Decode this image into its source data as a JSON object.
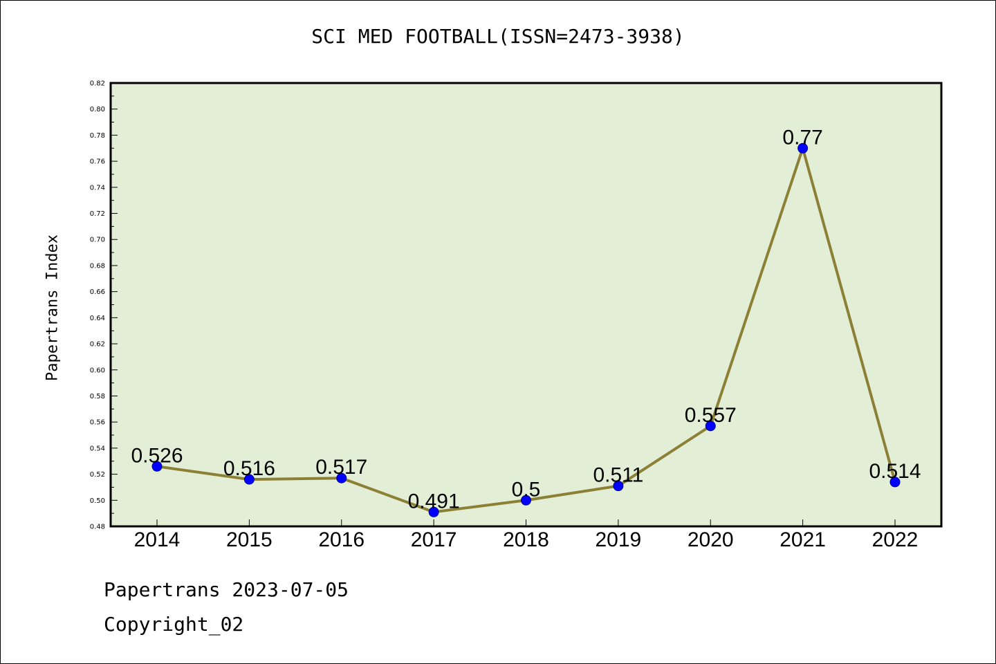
{
  "header": {
    "title": "SCI MED FOOTBALL(ISSN=2473-3938)"
  },
  "footer": {
    "line1": "Papertrans 2023-07-05",
    "line2": "Copyright_02"
  },
  "chart_data": {
    "type": "line",
    "title": "SCI MED FOOTBALL(ISSN=2473-3938)",
    "xlabel": "",
    "ylabel": "Papertrans Index",
    "categories": [
      "2014",
      "2015",
      "2016",
      "2017",
      "2018",
      "2019",
      "2020",
      "2021",
      "2022"
    ],
    "values": [
      0.526,
      0.516,
      0.517,
      0.491,
      0.5,
      0.511,
      0.557,
      0.77,
      0.514
    ],
    "data_labels": [
      "0.526",
      "0.516",
      "0.517",
      "0.491",
      "0.5",
      "0.511",
      "0.557",
      "0.77",
      "0.514"
    ],
    "ylim": [
      0.48,
      0.82
    ],
    "ytick_step": 0.02,
    "grid": false,
    "colors": {
      "plot_bg": "#e2efd6",
      "line": "#8b8035",
      "marker": "#0000ff",
      "marker_edge": "#00008b",
      "axis": "#000000"
    }
  }
}
